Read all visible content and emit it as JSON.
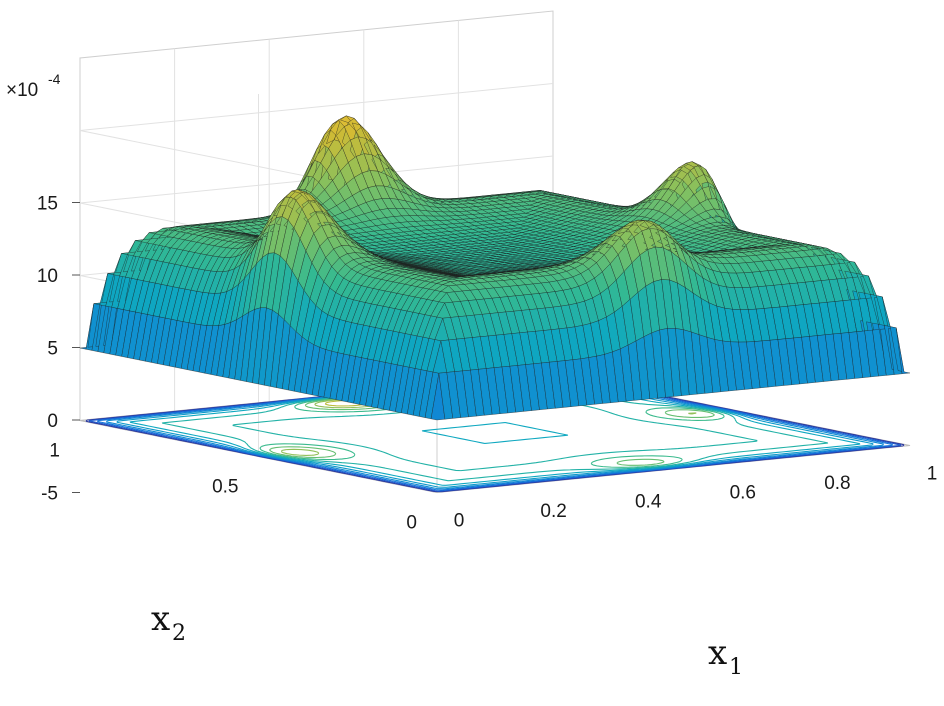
{
  "chart_data": {
    "type": "surface",
    "surface_function": "1.8e-3 * [1 - exp(-min(x1,1-x1,x2,1-x2)/0.045)] * [0.63 + 0.37*exp(-((x1-0.5)^2)/0.008)*(e^(-x2/0.2)+e^(-(1-x2)/0.2))/... + same in x2]",
    "peaks": [
      {
        "x1": 0.5,
        "x2": 0.05,
        "z": 13.5
      },
      {
        "x1": 0.95,
        "x2": 0.5,
        "z": 15.0
      },
      {
        "x1": 0.5,
        "x2": 0.95,
        "z": 19.0
      },
      {
        "x1": 0.05,
        "x2": 0.5,
        "z": 16.0
      }
    ],
    "center_value": 7.0,
    "contour_plane_z": -5,
    "xlabel": "x",
    "xlabel_sub": "1",
    "ylabel": "x",
    "ylabel_sub": "2",
    "z_scale_label": "×10",
    "z_scale_exp": "-4",
    "xlim": [
      0,
      1
    ],
    "ylim": [
      0,
      1
    ],
    "zlim": [
      -5,
      20
    ],
    "x_ticks": [
      "0",
      "0.2",
      "0.4",
      "0.6",
      "0.8",
      "1"
    ],
    "y_ticks": [
      "0",
      "0.5",
      "1"
    ],
    "z_ticks": [
      "-5",
      "0",
      "5",
      "10",
      "15"
    ],
    "colormap": "parula",
    "grid": true
  }
}
